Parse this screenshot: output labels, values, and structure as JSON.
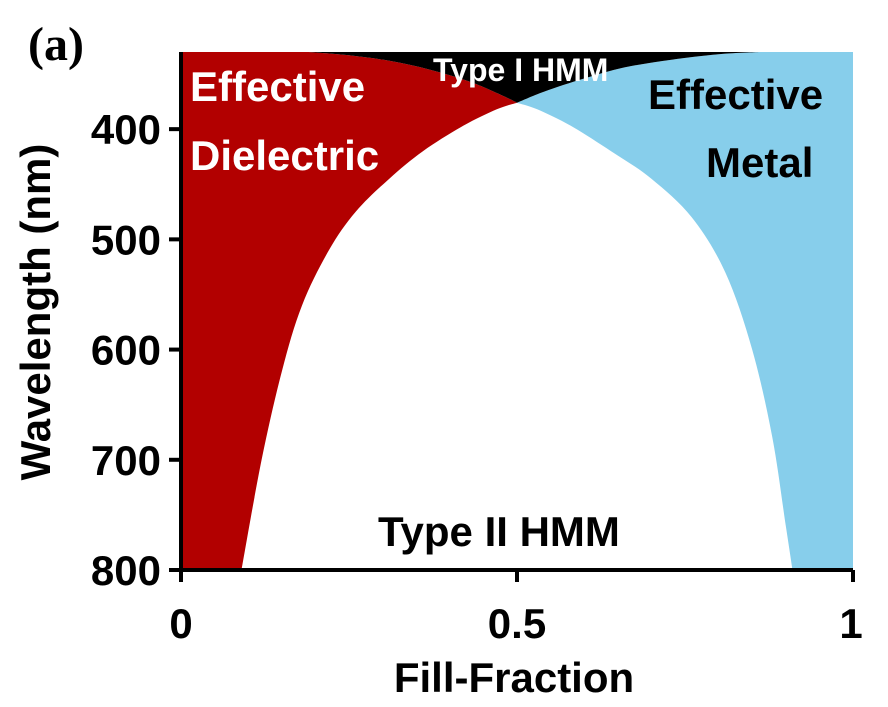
{
  "panel_label": "(a)",
  "colors": {
    "effective_dielectric": "#b20000",
    "effective_metal": "#87ceeb",
    "type_i_hmm": "#000000",
    "type_ii_hmm": "#ffffff",
    "axis": "#000000"
  },
  "chart_data": {
    "type": "area",
    "title": "",
    "xlabel": "Fill-Fraction",
    "ylabel": "Wavelength (nm)",
    "xlim": [
      0,
      1
    ],
    "ylim": [
      330,
      800
    ],
    "y_axis_inverted": true,
    "x_ticks": [
      0,
      0.5,
      1
    ],
    "x_tick_labels": [
      "0",
      "0.5",
      "1"
    ],
    "y_ticks": [
      400,
      500,
      600,
      700,
      800
    ],
    "y_tick_labels": [
      "400",
      "500",
      "600",
      "700",
      "800"
    ],
    "grid": false,
    "regions": [
      {
        "name": "Effective Dielectric",
        "label_lines": [
          "Effective",
          "Dielectric"
        ],
        "color": "#b20000",
        "text_color": "#ffffff"
      },
      {
        "name": "Effective Metal",
        "label_lines": [
          "Effective",
          "Metal"
        ],
        "color": "#87ceeb",
        "text_color": "#000000"
      },
      {
        "name": "Type I HMM",
        "label_lines": [
          "Type I HMM"
        ],
        "color": "#000000",
        "text_color": "#ffffff"
      },
      {
        "name": "Type II HMM",
        "label_lines": [
          "Type II HMM"
        ],
        "color": "#ffffff",
        "text_color": "#000000"
      }
    ],
    "series": [
      {
        "boundary": "dielectric-left",
        "x": [
          0.09,
          0.12,
          0.15,
          0.18,
          0.22,
          0.26,
          0.31,
          0.36,
          0.42,
          0.47,
          0.5
        ],
        "y": [
          800,
          700,
          620,
          560,
          510,
          475,
          445,
          420,
          397,
          382,
          376
        ]
      },
      {
        "boundary": "metal-right",
        "x": [
          0.5,
          0.53,
          0.58,
          0.64,
          0.7,
          0.76,
          0.81,
          0.85,
          0.88,
          0.9,
          0.91
        ],
        "y": [
          376,
          382,
          397,
          420,
          445,
          480,
          530,
          600,
          680,
          760,
          800
        ]
      },
      {
        "boundary": "dielectric-top",
        "x": [
          0.19,
          0.25,
          0.31,
          0.37,
          0.43,
          0.48,
          0.5
        ],
        "y": [
          330,
          333,
          338,
          346,
          357,
          370,
          376
        ]
      },
      {
        "boundary": "metal-top",
        "x": [
          0.5,
          0.54,
          0.6,
          0.66,
          0.73,
          0.8,
          0.86
        ],
        "y": [
          376,
          366,
          354,
          344,
          337,
          332,
          330
        ]
      }
    ]
  }
}
